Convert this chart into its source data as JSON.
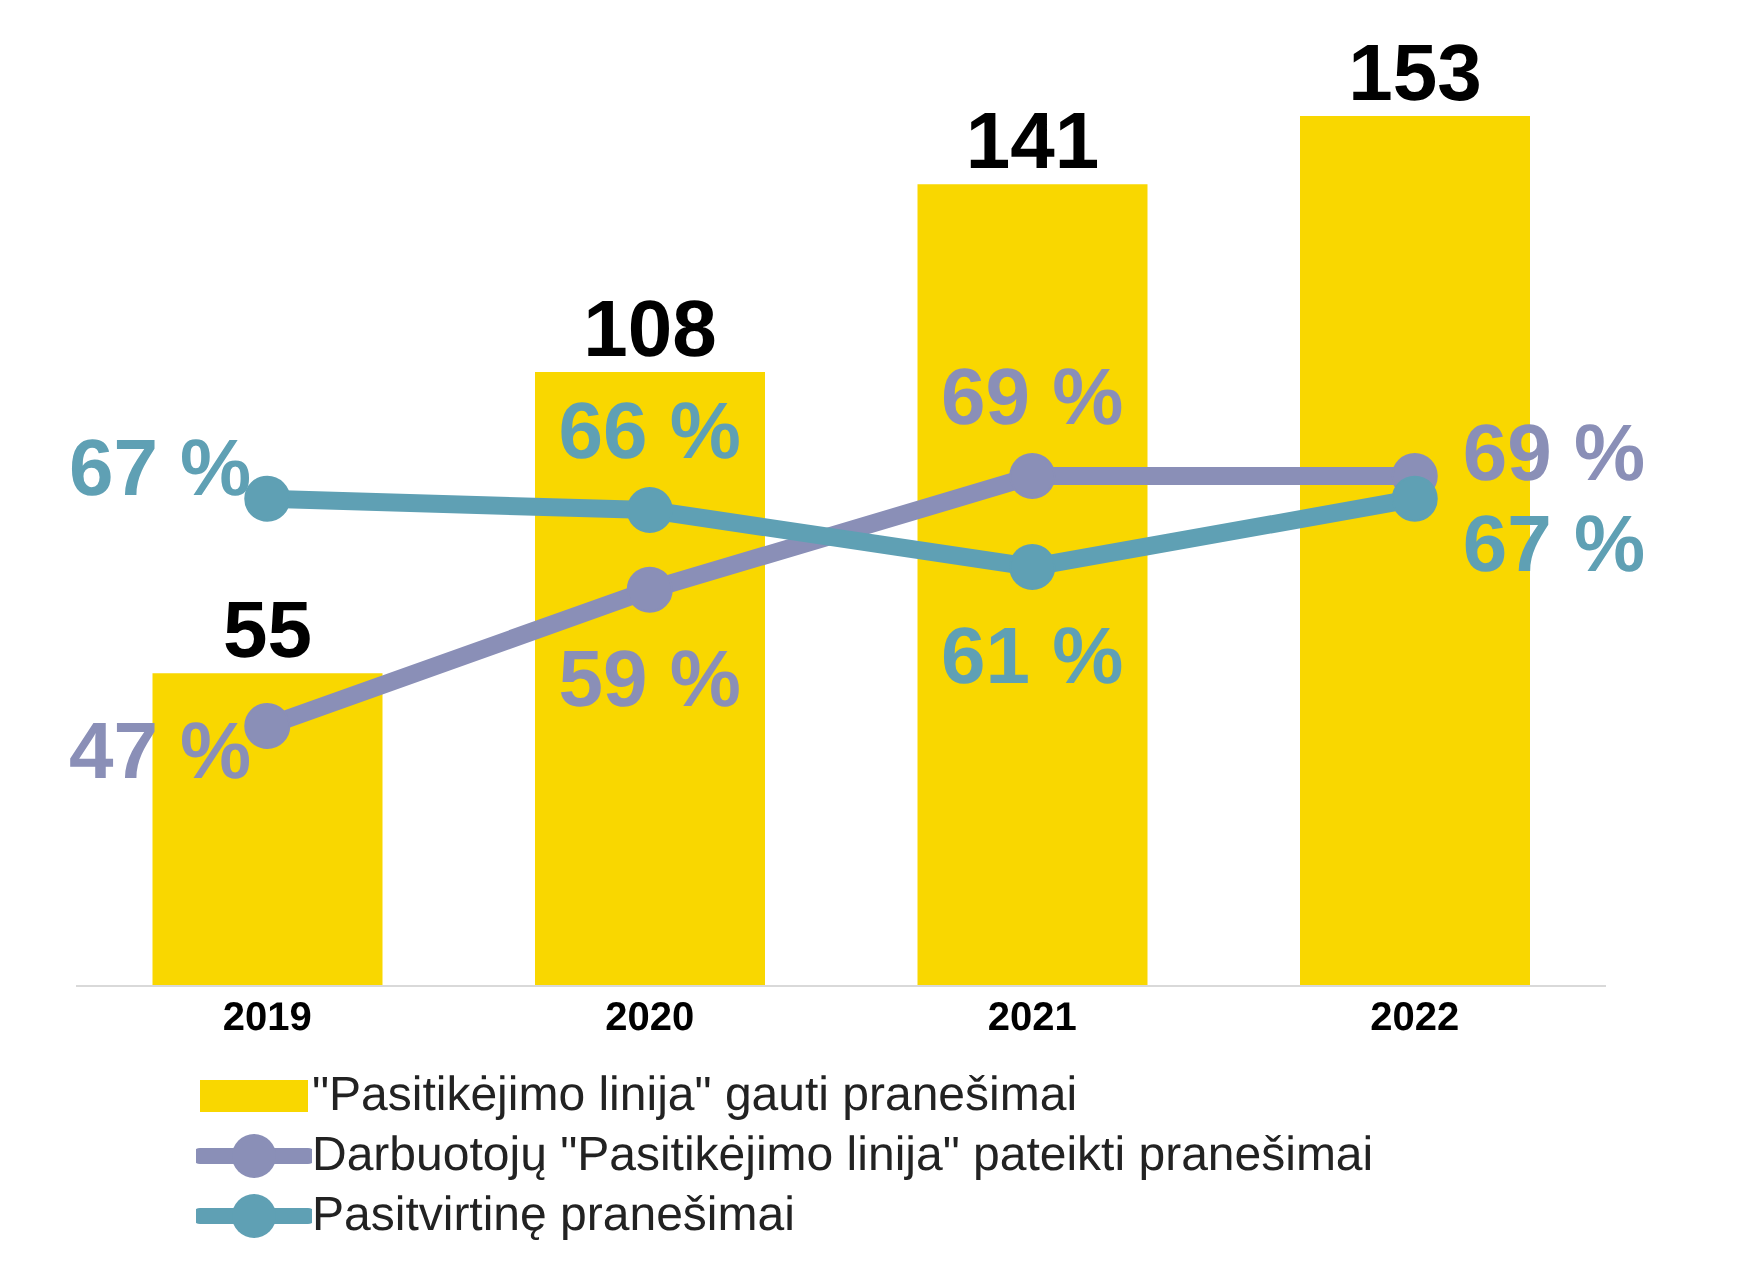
{
  "chart_data": {
    "type": "bar",
    "categories": [
      "2019",
      "2020",
      "2021",
      "2022"
    ],
    "series": [
      {
        "name": "\"Pasitikėjimo linija\" gauti pranešimai",
        "color": "#f9d700",
        "values": [
          55,
          108,
          141,
          153
        ],
        "value_labels": [
          "55",
          "108",
          "141",
          "153"
        ]
      },
      {
        "name": "Darbuotojų \"Pasitikėjimo linija\" pateikti pranešimai",
        "type": "line",
        "axis": "y2",
        "color": "#8a8fb7",
        "values": [
          47,
          59,
          69,
          69
        ],
        "value_labels": [
          "47 %",
          "59 %",
          "69 %",
          "69 %"
        ]
      },
      {
        "name": "Pasitvirtinę pranešimai",
        "type": "line",
        "axis": "y2",
        "color": "#5fa0b4",
        "values": [
          67,
          66,
          61,
          67
        ],
        "value_labels": [
          "67 %",
          "66 %",
          "61 %",
          "67 %"
        ]
      }
    ],
    "marker": "circle",
    "legend": "bottom"
  }
}
